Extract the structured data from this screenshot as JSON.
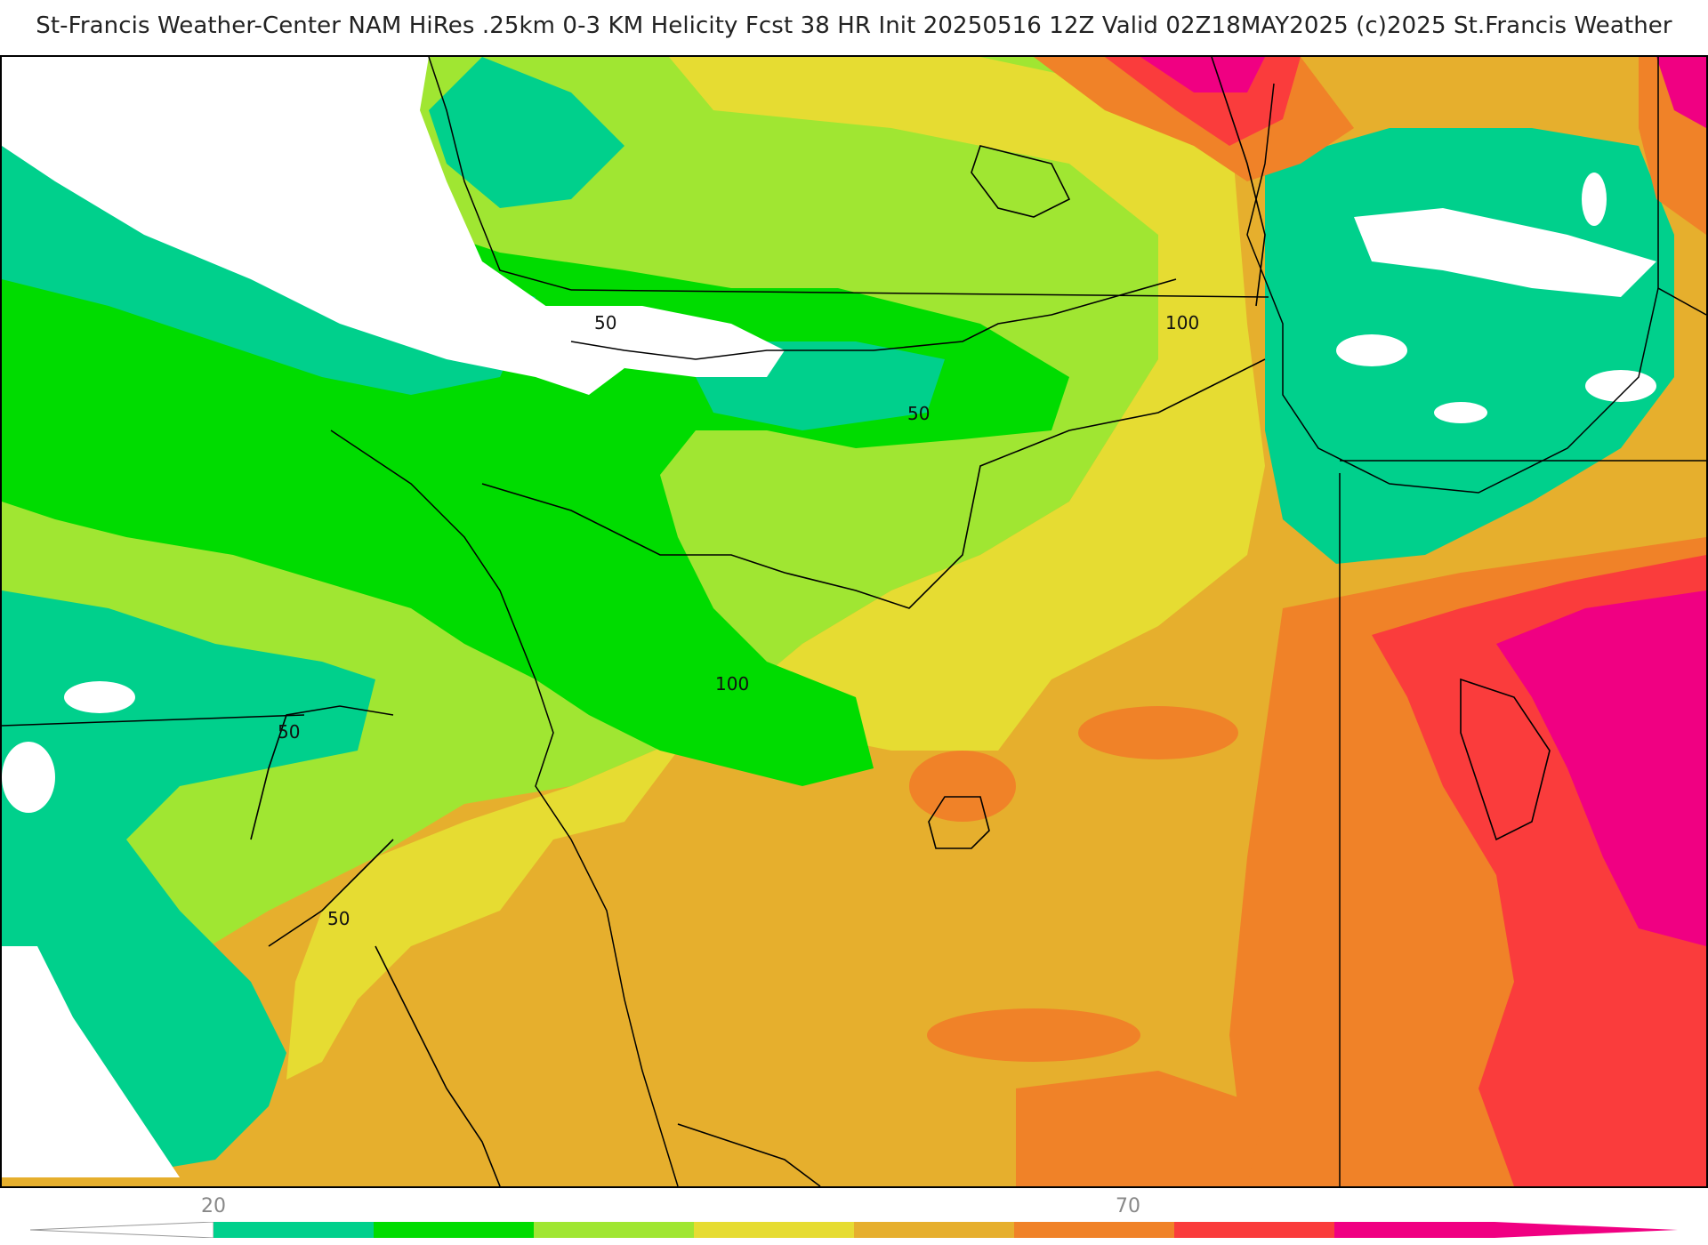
{
  "header": {
    "title": "St-Francis Weather-Center NAM HiRes .25km 0-3 KM Helicity Fcst 38 HR Init 20250516 12Z  Valid 02Z18MAY2025    (c)2025 St.Francis Weather"
  },
  "map": {
    "contour_labels": [
      "50",
      "50",
      "100",
      "100",
      "50",
      "50"
    ]
  },
  "colorbar": {
    "tick_labels": [
      "20",
      "70"
    ],
    "colors": [
      "#00d08c",
      "#00dc00",
      "#a0e632",
      "#e6dc32",
      "#e6af2d",
      "#f08228",
      "#fa3c3c",
      "#f00082"
    ]
  },
  "palette": {
    "white": "#ffffff",
    "teal": "#00d08c",
    "green": "#00dc00",
    "lime": "#a0e632",
    "yellow": "#e6dc32",
    "gold": "#e6af2d",
    "orange": "#f08228",
    "red": "#fa3c3c",
    "magenta": "#f00082"
  }
}
